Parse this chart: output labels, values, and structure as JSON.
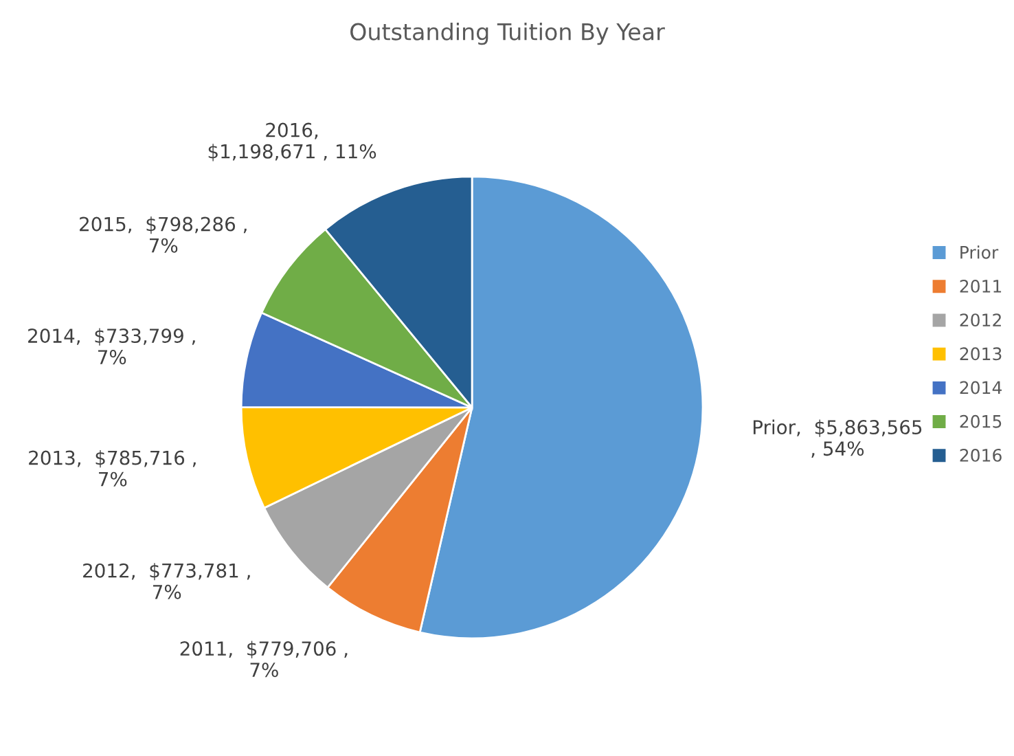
{
  "chart_data": {
    "type": "pie",
    "title": "Outstanding Tuition By Year",
    "categories": [
      "Prior",
      "2011",
      "2012",
      "2013",
      "2014",
      "2015",
      "2016"
    ],
    "values": [
      5863565,
      779706,
      773781,
      785716,
      733799,
      798286,
      1198671
    ],
    "colors": [
      "#5b9bd5",
      "#ed7d31",
      "#a5a5a5",
      "#ffc000",
      "#4472c4",
      "#70ad47",
      "#255e91"
    ],
    "value_labels": [
      "Prior,  $5,863,565\n, 54%",
      "2011,  $779,706 ,\n7%",
      "2012,  $773,781 ,\n7%",
      "2013,  $785,716 ,\n7%",
      "2014,  $733,799 ,\n7%",
      "2015,  $798,286 ,\n7%",
      "2016,\n$1,198,671 , 11%"
    ],
    "legend": "right"
  }
}
